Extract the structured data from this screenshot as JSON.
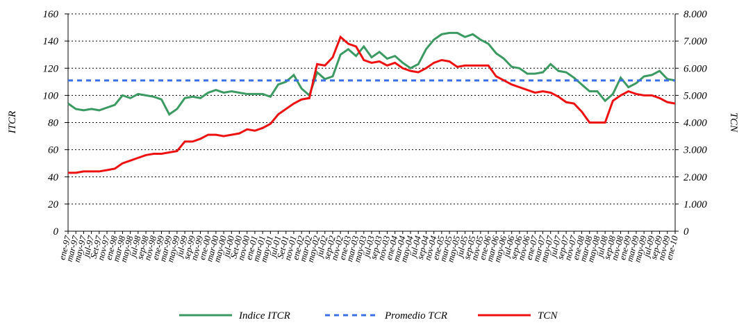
{
  "chart_data": {
    "type": "line",
    "y_label": "ITCR",
    "y2_label": "TCN",
    "categories": [
      "ene-97",
      "mar-97",
      "may-97",
      "jul-97",
      "Set-97",
      "nov-97",
      "ene-98",
      "mar-98",
      "may-98",
      "jul-98",
      "sep-98",
      "nov-98",
      "ene-99",
      "mar-99",
      "may-99",
      "jul-99",
      "sep-99",
      "nov-99",
      "ene-00",
      "mar-00",
      "may-00",
      "jul-00",
      "Set-00",
      "nov-00",
      "ene-01",
      "mar-01",
      "may-01",
      "jul-01",
      "Set-01",
      "nov-01",
      "ene-02",
      "mar-02",
      "may-02",
      "jul-02",
      "sep-02",
      "nov-02",
      "ene-03",
      "mar-03",
      "may-03",
      "jul-03",
      "sep-03",
      "nov-03",
      "ene-04",
      "mar-04",
      "may-04",
      "jul-04",
      "sep-04",
      "nov-04",
      "ene-05",
      "mar-05",
      "may-05",
      "jul-05",
      "sep-05",
      "nov-05",
      "ene-06",
      "mar-06",
      "may-06",
      "jul-06",
      "sep-06",
      "nov-06",
      "ene-07",
      "mar-07",
      "may-07",
      "jul-07",
      "sep-07",
      "nov-07",
      "ene-08",
      "mar-08",
      "may-08",
      "jul-08",
      "sep-08",
      "nov-08",
      "ene-09",
      "mar-09",
      "may-09",
      "jul-09",
      "sep-09",
      "nov-09",
      "ene-10"
    ],
    "series": [
      {
        "name": "Indice ITCR",
        "color": "#3a9a62",
        "dash": false,
        "values": [
          94,
          90,
          89,
          90,
          89,
          91,
          93,
          100,
          98,
          101,
          100,
          99,
          97,
          86,
          90,
          98,
          99,
          98,
          102,
          104,
          102,
          103,
          102,
          101,
          101,
          101,
          99,
          108,
          110,
          115,
          105,
          100,
          117,
          112,
          114,
          130,
          134,
          129,
          136,
          128,
          132,
          127,
          129,
          124,
          120,
          123,
          134,
          141,
          145,
          146,
          146,
          143,
          145,
          141,
          138,
          131,
          127,
          121,
          120,
          116,
          116,
          117,
          123,
          118,
          117,
          113,
          108,
          103,
          103,
          96,
          101,
          113,
          106,
          109,
          114,
          115,
          118,
          112,
          111
        ]
      },
      {
        "name": "Promedio TCR",
        "color": "#3a6fe8",
        "dash": true,
        "values": [
          111,
          111,
          111,
          111,
          111,
          111,
          111,
          111,
          111,
          111,
          111,
          111,
          111,
          111,
          111,
          111,
          111,
          111,
          111,
          111,
          111,
          111,
          111,
          111,
          111,
          111,
          111,
          111,
          111,
          111,
          111,
          111,
          111,
          111,
          111,
          111,
          111,
          111,
          111,
          111,
          111,
          111,
          111,
          111,
          111,
          111,
          111,
          111,
          111,
          111,
          111,
          111,
          111,
          111,
          111,
          111,
          111,
          111,
          111,
          111,
          111,
          111,
          111,
          111,
          111,
          111,
          111,
          111,
          111,
          111,
          111,
          111,
          111,
          111,
          111,
          111,
          111,
          111,
          111
        ]
      },
      {
        "name": "TCN",
        "color": "#ee1111",
        "dash": false,
        "axis": "y2",
        "values": [
          2150,
          2150,
          2200,
          2200,
          2200,
          2250,
          2300,
          2500,
          2600,
          2700,
          2800,
          2850,
          2850,
          2900,
          2950,
          3300,
          3300,
          3400,
          3550,
          3550,
          3500,
          3550,
          3600,
          3750,
          3700,
          3800,
          3950,
          4300,
          4500,
          4700,
          4850,
          4900,
          6150,
          6100,
          6400,
          7150,
          6900,
          6800,
          6300,
          6200,
          6250,
          6100,
          6200,
          6000,
          5900,
          5850,
          6000,
          6200,
          6300,
          6250,
          6050,
          6100,
          6100,
          6100,
          6100,
          5700,
          5550,
          5400,
          5300,
          5200,
          5100,
          5150,
          5100,
          4950,
          4750,
          4700,
          4400,
          4000,
          4000,
          4000,
          4800,
          5000,
          5150,
          5050,
          5000,
          5000,
          4900,
          4750,
          4700
        ]
      }
    ],
    "ylim": [
      0,
      160
    ],
    "yticks": [
      0,
      20,
      40,
      60,
      80,
      100,
      120,
      140,
      160
    ],
    "y2lim": [
      0,
      8000
    ],
    "y2ticks": [
      0,
      {
        "value": 1000,
        "label": "1.000"
      },
      {
        "value": 2000,
        "label": "2.000"
      },
      {
        "value": 3000,
        "label": "3.000"
      },
      {
        "value": 4000,
        "label": "4.000"
      },
      {
        "value": 5000,
        "label": "5.000"
      },
      {
        "value": 6000,
        "label": "6.000"
      },
      {
        "value": 7000,
        "label": "7.000"
      },
      {
        "value": 8000,
        "label": "8.000"
      }
    ],
    "grid": true,
    "legend": "bottom"
  }
}
